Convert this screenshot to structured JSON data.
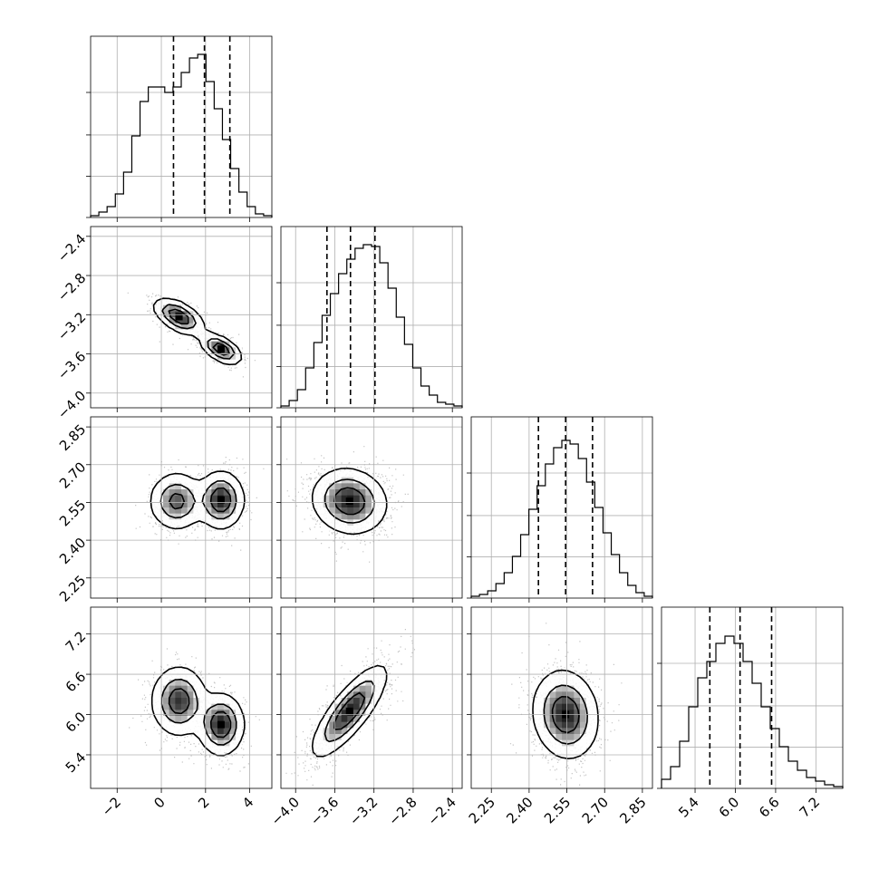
{
  "chart_data": {
    "type": "corner",
    "grid": true,
    "params": [
      {
        "ticks": [
          -2,
          0,
          2,
          4
        ],
        "tick_labels": [
          "−2",
          "0",
          "2",
          "4"
        ],
        "range": [
          -3.2,
          5.0
        ],
        "quantiles": [
          0.55,
          1.95,
          3.1
        ],
        "hist": [
          0.01,
          0.03,
          0.06,
          0.13,
          0.25,
          0.45,
          0.64,
          0.72,
          0.72,
          0.69,
          0.72,
          0.8,
          0.88,
          0.9,
          0.75,
          0.6,
          0.43,
          0.27,
          0.14,
          0.06,
          0.02,
          0.01
        ]
      },
      {
        "ticks": [
          -4.0,
          -3.6,
          -3.2,
          -2.8,
          -2.4
        ],
        "tick_labels": [
          "−4.0",
          "−3.6",
          "−3.2",
          "−2.8",
          "−2.4"
        ],
        "range": [
          -4.15,
          -2.3
        ],
        "quantiles": [
          -3.68,
          -3.44,
          -3.19
        ],
        "hist": [
          0.01,
          0.04,
          0.1,
          0.22,
          0.36,
          0.51,
          0.63,
          0.74,
          0.82,
          0.88,
          0.9,
          0.89,
          0.8,
          0.66,
          0.5,
          0.35,
          0.22,
          0.12,
          0.07,
          0.03,
          0.02,
          0.01
        ]
      },
      {
        "ticks": [
          2.25,
          2.4,
          2.55,
          2.7,
          2.85
        ],
        "tick_labels": [
          "2.25",
          "2.40",
          "2.55",
          "2.70",
          "2.85"
        ],
        "range": [
          2.17,
          2.89
        ],
        "quantiles": [
          2.437,
          2.545,
          2.652
        ],
        "hist": [
          0.01,
          0.02,
          0.04,
          0.08,
          0.14,
          0.23,
          0.35,
          0.49,
          0.62,
          0.74,
          0.83,
          0.87,
          0.85,
          0.77,
          0.64,
          0.5,
          0.36,
          0.24,
          0.14,
          0.07,
          0.03,
          0.01
        ]
      },
      {
        "ticks": [
          5.4,
          6.0,
          6.6,
          7.2
        ],
        "tick_labels": [
          "5.4",
          "6.0",
          "6.6",
          "7.2"
        ],
        "range": [
          4.9,
          7.6
        ],
        "quantiles": [
          5.62,
          6.07,
          6.54
        ],
        "hist": [
          0.05,
          0.12,
          0.26,
          0.45,
          0.61,
          0.7,
          0.8,
          0.84,
          0.8,
          0.7,
          0.58,
          0.45,
          0.33,
          0.23,
          0.15,
          0.1,
          0.06,
          0.04,
          0.02,
          0.01
        ]
      }
    ],
    "pairs": [
      {
        "row": 1,
        "col": 0,
        "rho": -0.55,
        "peaks": [
          [
            0.8,
            -3.22,
            1.0,
            0.55,
            0.09
          ],
          [
            2.7,
            -3.55,
            1.0,
            0.45,
            0.075
          ]
        ],
        "levels": [
          0.12,
          0.4,
          0.7
        ]
      },
      {
        "row": 2,
        "col": 0,
        "rho": 0.0,
        "peaks": [
          [
            0.7,
            2.555,
            0.8,
            0.6,
            0.055
          ],
          [
            2.7,
            2.56,
            1.0,
            0.5,
            0.055
          ]
        ],
        "levels": [
          0.12,
          0.4,
          0.7
        ]
      },
      {
        "row": 3,
        "col": 0,
        "rho": 0.0,
        "peaks": [
          [
            0.8,
            6.2,
            0.9,
            0.6,
            0.25
          ],
          [
            2.7,
            5.85,
            1.0,
            0.5,
            0.22
          ]
        ],
        "levels": [
          0.12,
          0.4,
          0.7
        ]
      },
      {
        "row": 2,
        "col": 1,
        "rho": -0.1,
        "peaks": [
          [
            -3.45,
            2.555,
            1.0,
            0.19,
            0.065
          ]
        ],
        "levels": [
          0.14,
          0.42,
          0.72
        ]
      },
      {
        "row": 3,
        "col": 1,
        "rho": 0.8,
        "peaks": [
          [
            -3.45,
            6.05,
            1.0,
            0.19,
            0.34
          ]
        ],
        "levels": [
          0.14,
          0.42,
          0.72
        ]
      },
      {
        "row": 3,
        "col": 2,
        "rho": -0.1,
        "peaks": [
          [
            2.545,
            6.0,
            1.0,
            0.065,
            0.33
          ]
        ],
        "levels": [
          0.14,
          0.42,
          0.72
        ]
      }
    ]
  }
}
